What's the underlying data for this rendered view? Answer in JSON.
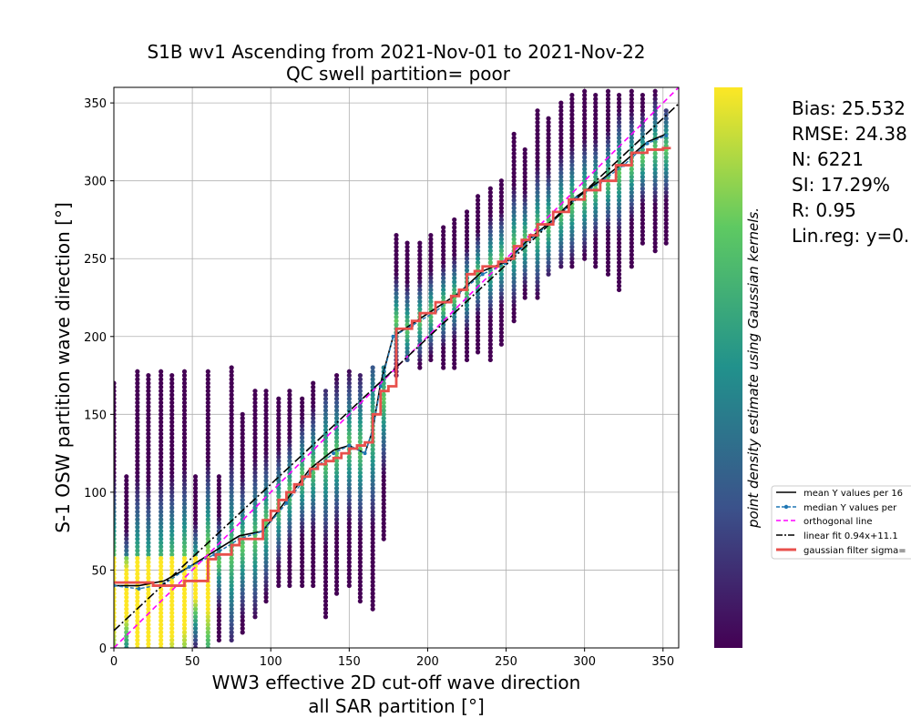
{
  "chart_data": {
    "type": "scatter",
    "title": "S1B wv1 Ascending from 2021-Nov-01 to 2021-Nov-22",
    "subtitle": "QC swell partition= poor",
    "xlabel_line1": "WW3 effective 2D cut-off wave direction",
    "xlabel_line2": "all SAR partition [°]",
    "ylabel": "S-1 OSW partition wave direction [°]",
    "xlim": [
      0,
      360
    ],
    "ylim": [
      0,
      360
    ],
    "xticks": [
      "0",
      "50",
      "100",
      "150",
      "200",
      "250",
      "300",
      "350"
    ],
    "yticks": [
      "0",
      "50",
      "100",
      "150",
      "200",
      "250",
      "300",
      "350"
    ],
    "grid": true,
    "colorbar_label": "point density estimate using Gaussian kernels.",
    "colormap": [
      "#440154",
      "#3b528b",
      "#21918c",
      "#5ec962",
      "#fde725"
    ],
    "stats": {
      "bias": "Bias: 25.532",
      "rmse": "RMSE: 24.38",
      "n": "N: 6221",
      "si": "SI: 17.29%",
      "r": "R: 0.95",
      "linreg": "Lin.reg: y=0."
    },
    "legend": {
      "placement": "right",
      "entries": [
        {
          "label": "mean Y values per 16",
          "color": "#000000",
          "style": "solid"
        },
        {
          "label": "median Y values per",
          "color": "#1f77b4",
          "style": "dashed-dot"
        },
        {
          "label": "orthogonal line",
          "color": "#ff00ff",
          "style": "dashed"
        },
        {
          "label": "linear fit 0.94x+11.1",
          "color": "#000000",
          "style": "dashdot"
        },
        {
          "label": "gaussian filter sigma=",
          "color": "#e8504c",
          "style": "solid-thick"
        }
      ]
    },
    "columns": [
      {
        "x": 0,
        "ymin": 0,
        "ymax": 172,
        "mode": 40
      },
      {
        "x": 8,
        "ymin": 0,
        "ymax": 110,
        "mode": 35
      },
      {
        "x": 15,
        "ymin": 0,
        "ymax": 178,
        "mode": 30
      },
      {
        "x": 22,
        "ymin": 0,
        "ymax": 175,
        "mode": 25
      },
      {
        "x": 30,
        "ymin": 0,
        "ymax": 178,
        "mode": 30
      },
      {
        "x": 37,
        "ymin": 0,
        "ymax": 175,
        "mode": 35
      },
      {
        "x": 45,
        "ymin": 0,
        "ymax": 178,
        "mode": 40
      },
      {
        "x": 52,
        "ymin": 0,
        "ymax": 110,
        "mode": 45
      },
      {
        "x": 60,
        "ymin": 0,
        "ymax": 178,
        "mode": 50
      },
      {
        "x": 67,
        "ymin": 5,
        "ymax": 110,
        "mode": 55
      },
      {
        "x": 75,
        "ymin": 5,
        "ymax": 180,
        "mode": 60
      },
      {
        "x": 82,
        "ymin": 10,
        "ymax": 150,
        "mode": 65
      },
      {
        "x": 90,
        "ymin": 20,
        "ymax": 165,
        "mode": 70
      },
      {
        "x": 97,
        "ymin": 30,
        "ymax": 165,
        "mode": 80
      },
      {
        "x": 105,
        "ymin": 40,
        "ymax": 160,
        "mode": 90
      },
      {
        "x": 112,
        "ymin": 40,
        "ymax": 165,
        "mode": 100
      },
      {
        "x": 120,
        "ymin": 40,
        "ymax": 160,
        "mode": 110
      },
      {
        "x": 127,
        "ymin": 40,
        "ymax": 170,
        "mode": 115
      },
      {
        "x": 135,
        "ymin": 20,
        "ymax": 165,
        "mode": 120
      },
      {
        "x": 142,
        "ymin": 35,
        "ymax": 175,
        "mode": 125
      },
      {
        "x": 150,
        "ymin": 40,
        "ymax": 178,
        "mode": 130
      },
      {
        "x": 157,
        "ymin": 30,
        "ymax": 175,
        "mode": 128
      },
      {
        "x": 165,
        "ymin": 25,
        "ymax": 180,
        "mode": 140
      },
      {
        "x": 172,
        "ymin": 70,
        "ymax": 180,
        "mode": 160
      },
      {
        "x": 180,
        "ymin": 175,
        "ymax": 265,
        "mode": 210
      },
      {
        "x": 187,
        "ymin": 185,
        "ymax": 260,
        "mode": 205
      },
      {
        "x": 195,
        "ymin": 180,
        "ymax": 260,
        "mode": 210
      },
      {
        "x": 202,
        "ymin": 185,
        "ymax": 265,
        "mode": 215
      },
      {
        "x": 210,
        "ymin": 180,
        "ymax": 270,
        "mode": 220
      },
      {
        "x": 217,
        "ymin": 180,
        "ymax": 275,
        "mode": 225
      },
      {
        "x": 225,
        "ymin": 185,
        "ymax": 280,
        "mode": 230
      },
      {
        "x": 232,
        "ymin": 190,
        "ymax": 290,
        "mode": 240
      },
      {
        "x": 240,
        "ymin": 185,
        "ymax": 295,
        "mode": 245
      },
      {
        "x": 247,
        "ymin": 195,
        "ymax": 300,
        "mode": 250
      },
      {
        "x": 255,
        "ymin": 210,
        "ymax": 330,
        "mode": 258
      },
      {
        "x": 262,
        "ymin": 225,
        "ymax": 320,
        "mode": 262
      },
      {
        "x": 270,
        "ymin": 225,
        "ymax": 345,
        "mode": 268
      },
      {
        "x": 277,
        "ymin": 240,
        "ymax": 340,
        "mode": 272
      },
      {
        "x": 285,
        "ymin": 245,
        "ymax": 350,
        "mode": 280
      },
      {
        "x": 292,
        "ymin": 245,
        "ymax": 355,
        "mode": 285
      },
      {
        "x": 300,
        "ymin": 250,
        "ymax": 358,
        "mode": 290
      },
      {
        "x": 307,
        "ymin": 245,
        "ymax": 355,
        "mode": 295
      },
      {
        "x": 315,
        "ymin": 240,
        "ymax": 358,
        "mode": 300
      },
      {
        "x": 322,
        "ymin": 230,
        "ymax": 355,
        "mode": 305
      },
      {
        "x": 330,
        "ymin": 245,
        "ymax": 358,
        "mode": 310
      },
      {
        "x": 337,
        "ymin": 260,
        "ymax": 355,
        "mode": 315
      },
      {
        "x": 345,
        "ymin": 255,
        "ymax": 358,
        "mode": 320
      },
      {
        "x": 352,
        "ymin": 260,
        "ymax": 345,
        "mode": 320
      }
    ],
    "series": [
      {
        "name": "mean Y values per 16",
        "x": [
          0,
          16,
          32,
          48,
          64,
          80,
          95,
          110,
          125,
          140,
          150,
          160,
          165,
          170,
          178,
          190,
          205,
          220,
          235,
          250,
          265,
          280,
          295,
          310,
          325,
          340,
          352
        ],
        "y": [
          40,
          40,
          43,
          52,
          62,
          72,
          75,
          95,
          115,
          127,
          130,
          125,
          140,
          170,
          200,
          208,
          218,
          228,
          242,
          248,
          263,
          275,
          290,
          300,
          312,
          325,
          330
        ]
      },
      {
        "name": "median Y values per",
        "x": [
          0,
          16,
          32,
          48,
          64,
          80,
          95,
          110,
          125,
          140,
          150,
          160,
          165,
          170,
          178,
          190,
          205,
          220,
          235,
          250,
          265,
          280,
          295,
          310,
          325,
          340,
          352
        ],
        "y": [
          40,
          38,
          41,
          52,
          60,
          70,
          75,
          93,
          113,
          125,
          130,
          125,
          140,
          168,
          200,
          207,
          216,
          228,
          240,
          247,
          262,
          274,
          289,
          299,
          310,
          324,
          329
        ]
      },
      {
        "name": "orthogonal line",
        "x": [
          0,
          360
        ],
        "y": [
          0,
          360
        ]
      },
      {
        "name": "linear fit 0.94x+11.1",
        "x": [
          0,
          360
        ],
        "y": [
          11.1,
          349.5
        ]
      },
      {
        "name": "gaussian filter sigma=",
        "x": [
          0,
          20,
          25,
          40,
          45,
          60,
          65,
          75,
          80,
          95,
          100,
          105,
          110,
          115,
          120,
          125,
          130,
          135,
          140,
          145,
          150,
          155,
          160,
          165,
          170,
          175,
          180,
          185,
          190,
          195,
          205,
          215,
          220,
          225,
          230,
          235,
          240,
          245,
          250,
          255,
          260,
          265,
          270,
          280,
          290,
          300,
          310,
          320,
          330,
          340,
          350,
          355
        ],
        "y": [
          42,
          42,
          40,
          40,
          43,
          57,
          60,
          66,
          70,
          82,
          88,
          95,
          100,
          105,
          110,
          115,
          118,
          120,
          122,
          125,
          128,
          130,
          132,
          150,
          165,
          168,
          205,
          205,
          210,
          215,
          222,
          226,
          230,
          240,
          242,
          245,
          245,
          248,
          250,
          258,
          262,
          265,
          272,
          280,
          288,
          294,
          300,
          310,
          318,
          320,
          321,
          321
        ]
      }
    ]
  }
}
